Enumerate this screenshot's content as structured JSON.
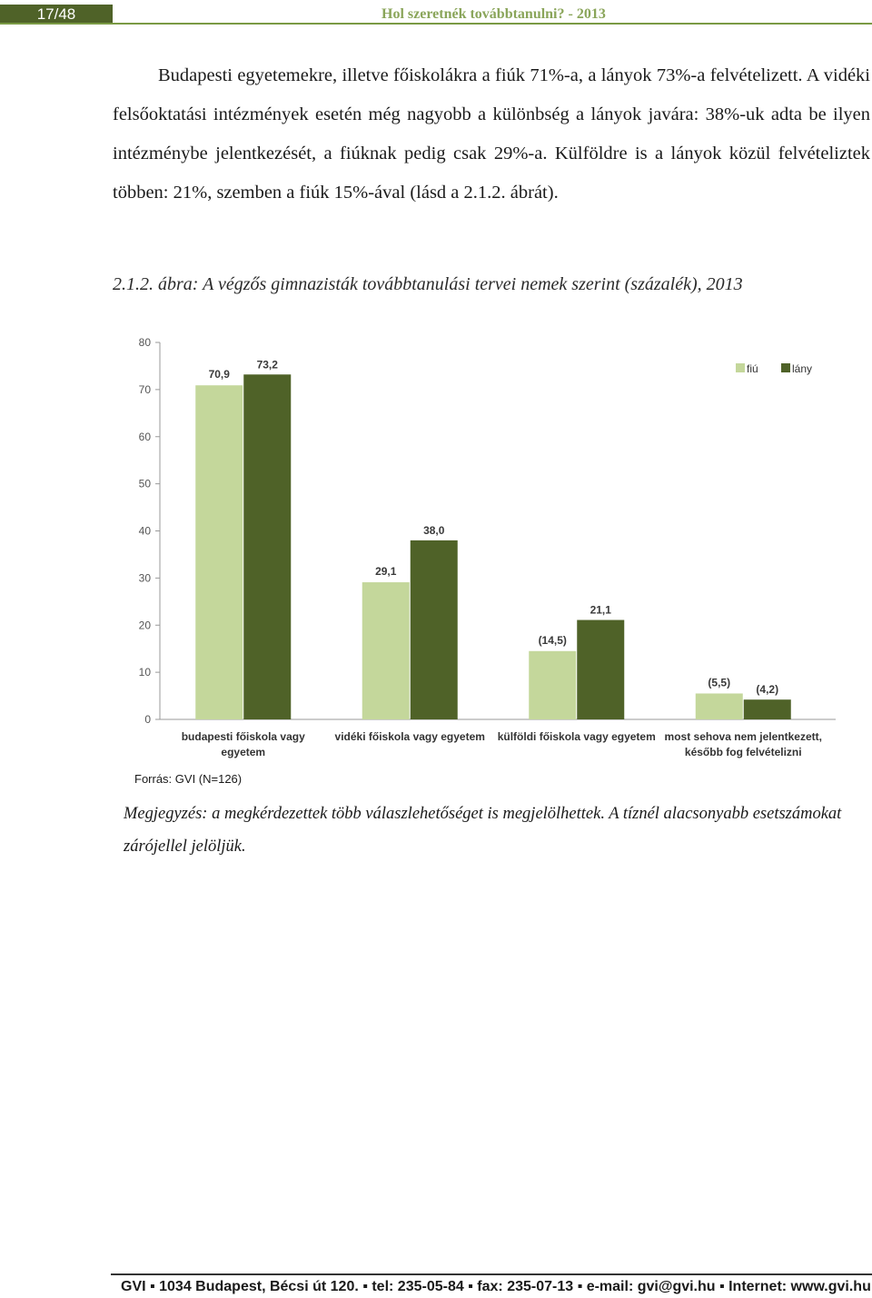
{
  "header": {
    "page_number": "17/48",
    "running_title": "Hol szeretnék továbbtanulni? - 2013"
  },
  "body_text": "Budapesti egyetemekre, illetve főiskolákra a fiúk 71%-a, a lányok 73%-a felvételizett. A vidéki felsőoktatási intézmények esetén még nagyobb a különbség a lányok javára: 38%-uk adta be ilyen intézménybe jelentkezését, a fiúknak pedig csak 29%-a. Külföldre is a lányok közül felvételiztek többen: 21%, szemben a fiúk 15%-ával (lásd a 2.1.2. ábrát).",
  "figure_caption": {
    "number": "2.1.2.",
    "text": "ábra: A végzős gimnazisták továbbtanulási tervei nemek szerint (százalék), 2013"
  },
  "chart_data": {
    "type": "bar",
    "categories": [
      [
        "budapesti főiskola vagy",
        "egyetem"
      ],
      [
        "vidéki főiskola vagy egyetem"
      ],
      [
        "külföldi főiskola vagy egyetem"
      ],
      [
        "most sehova nem jelentkezett,",
        "később fog felvételizni"
      ]
    ],
    "series": [
      {
        "name": "fiú",
        "color": "#c4d79b",
        "values": [
          70.9,
          29.1,
          14.5,
          5.5
        ],
        "labels": [
          "70,9",
          "29,1",
          "(14,5)",
          "(5,5)"
        ]
      },
      {
        "name": "lány",
        "color": "#4f6228",
        "values": [
          73.2,
          38.0,
          21.1,
          4.2
        ],
        "labels": [
          "73,2",
          "38,0",
          "21,1",
          "(4,2)"
        ]
      }
    ],
    "ylim": [
      0,
      80
    ],
    "yticks": [
      "0",
      "10",
      "20",
      "30",
      "40",
      "50",
      "60",
      "70",
      "80"
    ],
    "legend_position": "top-right",
    "grid": false
  },
  "source": "Forrás: GVI (N=126)",
  "note": "Megjegyzés: a megkérdezettek több válaszlehetőséget is megjelölhettek. A tíznél alacsonyabb esetszámokat zárójellel jelöljük.",
  "footer": "GVI ▪ 1034 Budapest, Bécsi út 120. ▪ tel: 235-05-84 ▪ fax: 235-07-13 ▪ e-mail: gvi@gvi.hu ▪ Internet: www.gvi.hu"
}
